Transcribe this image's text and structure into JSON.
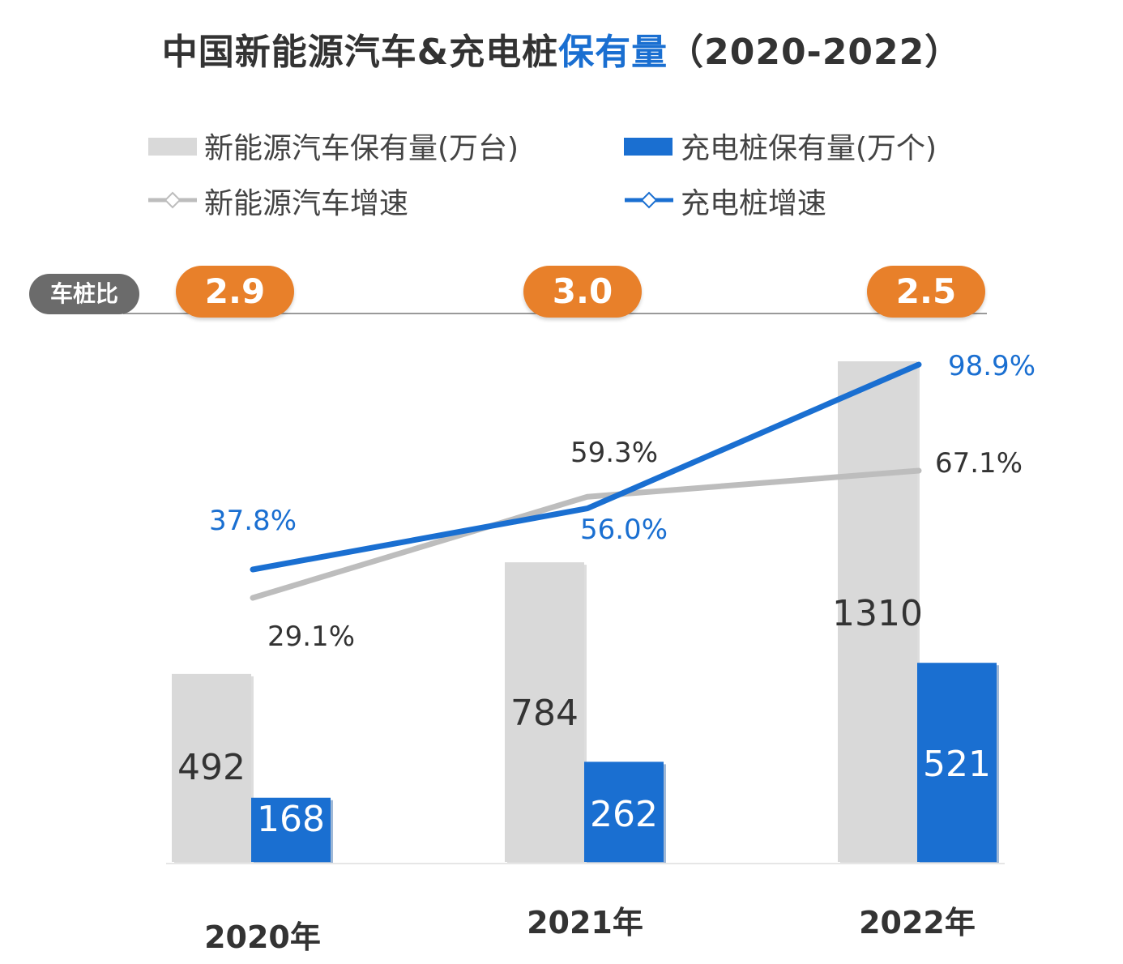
{
  "title": {
    "part1": "中国新能源汽车&充电桩",
    "part2": "保有量",
    "part3": "（2020-2022）"
  },
  "legend": {
    "ev_stock": "新能源汽车保有量(万台)",
    "pile_stock": "充电桩保有量(万个)",
    "ev_growth": "新能源汽车增速",
    "pile_growth": "充电桩增速"
  },
  "ratio": {
    "label": "车桩比",
    "values": [
      "2.9",
      "3.0",
      "2.5"
    ]
  },
  "colors": {
    "ev_bar": "#d9d9d9",
    "pile_bar": "#1a6fd1",
    "ev_line": "#bdbdbd",
    "pile_line": "#1a6fd1",
    "ratio_pill": "#e8802a",
    "ratio_label_bg": "#6b6b6b"
  },
  "chart_data": {
    "type": "bar",
    "categories": [
      "2020年",
      "2021年",
      "2022年"
    ],
    "series": [
      {
        "name": "新能源汽车保有量(万台)",
        "kind": "bar",
        "values": [
          492,
          784,
          1310
        ],
        "labels": [
          "492",
          "784",
          "1310"
        ]
      },
      {
        "name": "充电桩保有量(万个)",
        "kind": "bar",
        "values": [
          168,
          262,
          521
        ],
        "labels": [
          "168",
          "262",
          "521"
        ]
      },
      {
        "name": "新能源汽车增速",
        "kind": "line",
        "values": [
          29.1,
          59.3,
          67.1
        ],
        "labels": [
          "29.1%",
          "59.3%",
          "67.1%"
        ]
      },
      {
        "name": "充电桩增速",
        "kind": "line",
        "values": [
          37.8,
          56.0,
          98.9
        ],
        "labels": [
          "37.8%",
          "56.0%",
          "98.9%"
        ]
      }
    ]
  }
}
